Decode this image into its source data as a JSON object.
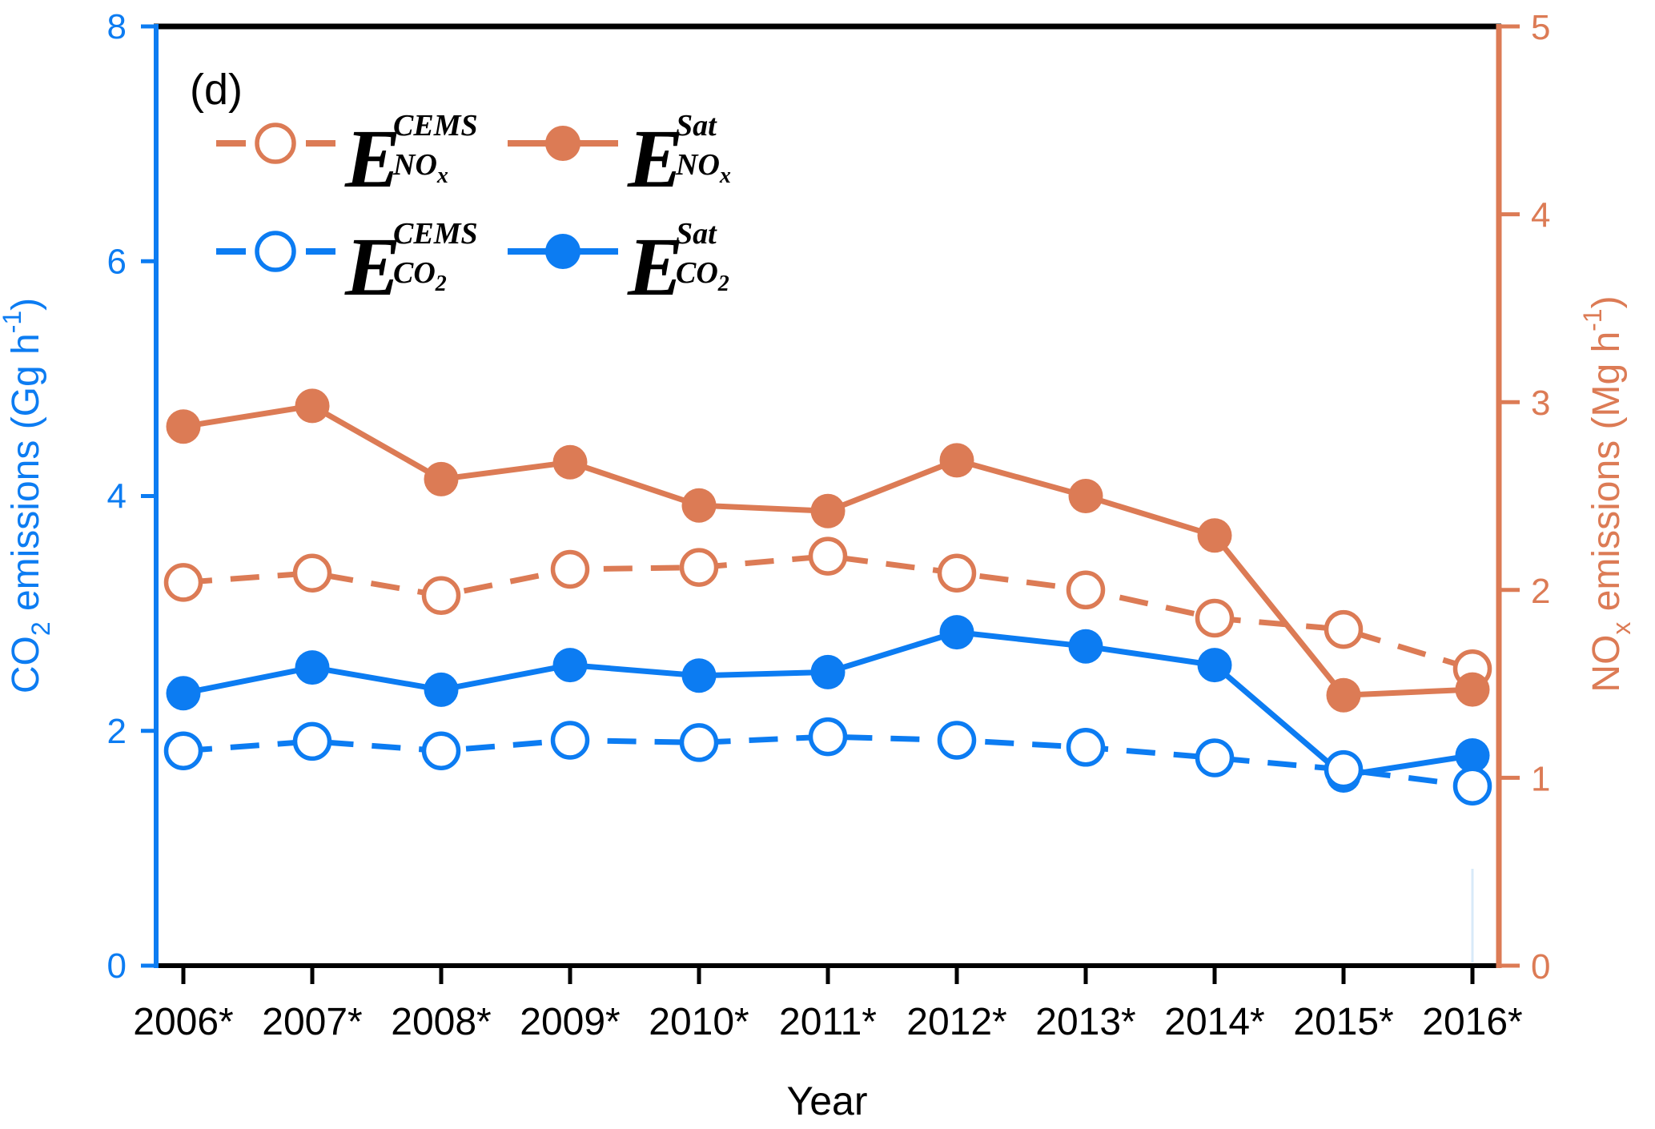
{
  "figure": {
    "panel_label": "(d)",
    "background": "#ffffff"
  },
  "colors": {
    "co2_blue": "#0C7CF2",
    "nox_orange": "#DC7B55",
    "frame_black": "#000000",
    "artifact_light_blue": "#D8EAF8"
  },
  "chart_data": {
    "type": "line",
    "panel_label": "(d)",
    "x_title": "Year",
    "categories": [
      "2006*",
      "2007*",
      "2008*",
      "2009*",
      "2010*",
      "2011*",
      "2012*",
      "2013*",
      "2014*",
      "2015*",
      "2016*"
    ],
    "left_axis": {
      "label_parts": {
        "pre": "CO",
        "sub": "2",
        "mid": " emissions (Gg h",
        "sup": "-1",
        "post": ")"
      },
      "range": [
        0,
        8
      ],
      "tick_values": [
        0,
        2,
        4,
        6,
        8
      ],
      "tick_labels": [
        "0",
        "2",
        "4",
        "6",
        "8"
      ],
      "color": "#0C7CF2"
    },
    "right_axis": {
      "label_parts": {
        "pre": "NO",
        "sub": "x",
        "mid": " emissions (Mg h",
        "sup": "-1",
        "post": ")"
      },
      "range": [
        0,
        5
      ],
      "tick_values": [
        0,
        1,
        2,
        3,
        4,
        5
      ],
      "tick_labels": [
        "0",
        "1",
        "2",
        "3",
        "4",
        "5"
      ],
      "color": "#DC7B55"
    },
    "series": [
      {
        "id": "nox-cems",
        "label": {
          "base": "E",
          "sup": "CEMS",
          "sub": "NO",
          "subsub": "x"
        },
        "axis": "right",
        "line_style": "dashed",
        "marker": "open",
        "color": "#DC7B55",
        "values": [
          2.04,
          2.09,
          1.97,
          2.11,
          2.12,
          2.18,
          2.09,
          2.0,
          1.85,
          1.79,
          1.58
        ]
      },
      {
        "id": "nox-sat",
        "label": {
          "base": "E",
          "sup": "Sat",
          "sub": "NO",
          "subsub": "x"
        },
        "axis": "right",
        "line_style": "solid",
        "marker": "filled",
        "color": "#DC7B55",
        "values": [
          2.87,
          2.98,
          2.59,
          2.68,
          2.45,
          2.42,
          2.69,
          2.5,
          2.29,
          1.44,
          1.47
        ]
      },
      {
        "id": "co2-cems",
        "label": {
          "base": "E",
          "sup": "CEMS",
          "sub": "CO",
          "subsub": "2"
        },
        "axis": "left",
        "line_style": "dashed",
        "marker": "open",
        "color": "#0C7CF2",
        "values": [
          1.83,
          1.91,
          1.83,
          1.92,
          1.9,
          1.95,
          1.92,
          1.86,
          1.77,
          1.67,
          1.53
        ]
      },
      {
        "id": "co2-sat",
        "label": {
          "base": "E",
          "sup": "Sat",
          "sub": "CO",
          "subsub": "2"
        },
        "axis": "left",
        "line_style": "solid",
        "marker": "filled",
        "color": "#0C7CF2",
        "values": [
          2.32,
          2.54,
          2.35,
          2.56,
          2.47,
          2.5,
          2.84,
          2.72,
          2.56,
          1.62,
          1.79
        ]
      }
    ],
    "legend_rows": [
      [
        "nox-cems",
        "nox-sat"
      ],
      [
        "co2-cems",
        "co2-sat"
      ]
    ],
    "z_order": [
      "nox-cems",
      "nox-sat",
      "co2-sat",
      "co2-cems"
    ],
    "legend_position": "upper-left",
    "grid": false
  }
}
